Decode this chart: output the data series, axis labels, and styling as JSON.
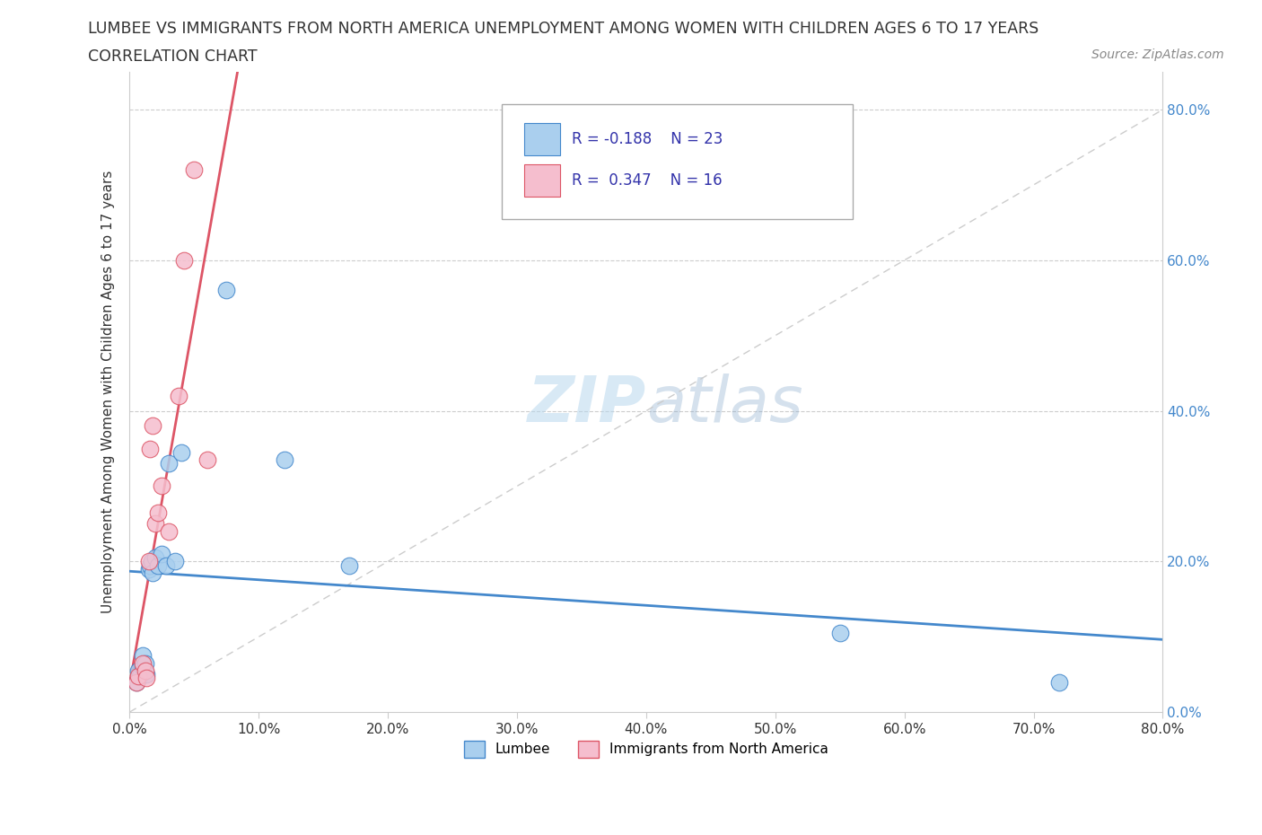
{
  "title_line1": "LUMBEE VS IMMIGRANTS FROM NORTH AMERICA UNEMPLOYMENT AMONG WOMEN WITH CHILDREN AGES 6 TO 17 YEARS",
  "title_line2": "CORRELATION CHART",
  "source": "Source: ZipAtlas.com",
  "xlabel_ticks": [
    "0.0%",
    "10.0%",
    "20.0%",
    "30.0%",
    "40.0%",
    "50.0%",
    "60.0%",
    "70.0%",
    "80.0%"
  ],
  "ylabel_ticks": [
    "0.0%",
    "20.0%",
    "40.0%",
    "60.0%",
    "80.0%"
  ],
  "ylabel_label": "Unemployment Among Women with Children Ages 6 to 17 years",
  "lumbee_R": -0.188,
  "lumbee_N": 23,
  "immigrants_R": 0.347,
  "immigrants_N": 16,
  "lumbee_color": "#aacfee",
  "immigrants_color": "#f5bece",
  "lumbee_line_color": "#4488cc",
  "immigrants_line_color": "#dd5566",
  "lumbee_x": [
    0.005,
    0.007,
    0.008,
    0.01,
    0.01,
    0.012,
    0.013,
    0.015,
    0.016,
    0.017,
    0.018,
    0.02,
    0.022,
    0.025,
    0.028,
    0.03,
    0.035,
    0.04,
    0.075,
    0.12,
    0.17,
    0.55,
    0.72
  ],
  "lumbee_y": [
    0.04,
    0.055,
    0.048,
    0.06,
    0.075,
    0.065,
    0.05,
    0.19,
    0.195,
    0.2,
    0.185,
    0.205,
    0.195,
    0.21,
    0.195,
    0.33,
    0.2,
    0.345,
    0.56,
    0.335,
    0.195,
    0.105,
    0.04
  ],
  "immigrants_x": [
    0.005,
    0.007,
    0.01,
    0.012,
    0.013,
    0.015,
    0.016,
    0.018,
    0.02,
    0.022,
    0.025,
    0.03,
    0.038,
    0.042,
    0.05,
    0.06
  ],
  "immigrants_y": [
    0.04,
    0.048,
    0.065,
    0.055,
    0.045,
    0.2,
    0.35,
    0.38,
    0.25,
    0.265,
    0.3,
    0.24,
    0.42,
    0.6,
    0.72,
    0.335
  ],
  "xlim": [
    0.0,
    0.8
  ],
  "ylim": [
    0.0,
    0.85
  ],
  "lumbee_trend_x": [
    0.0,
    0.8
  ],
  "immigrants_trend_x_start": 0.0,
  "immigrants_trend_x_end": 0.14
}
